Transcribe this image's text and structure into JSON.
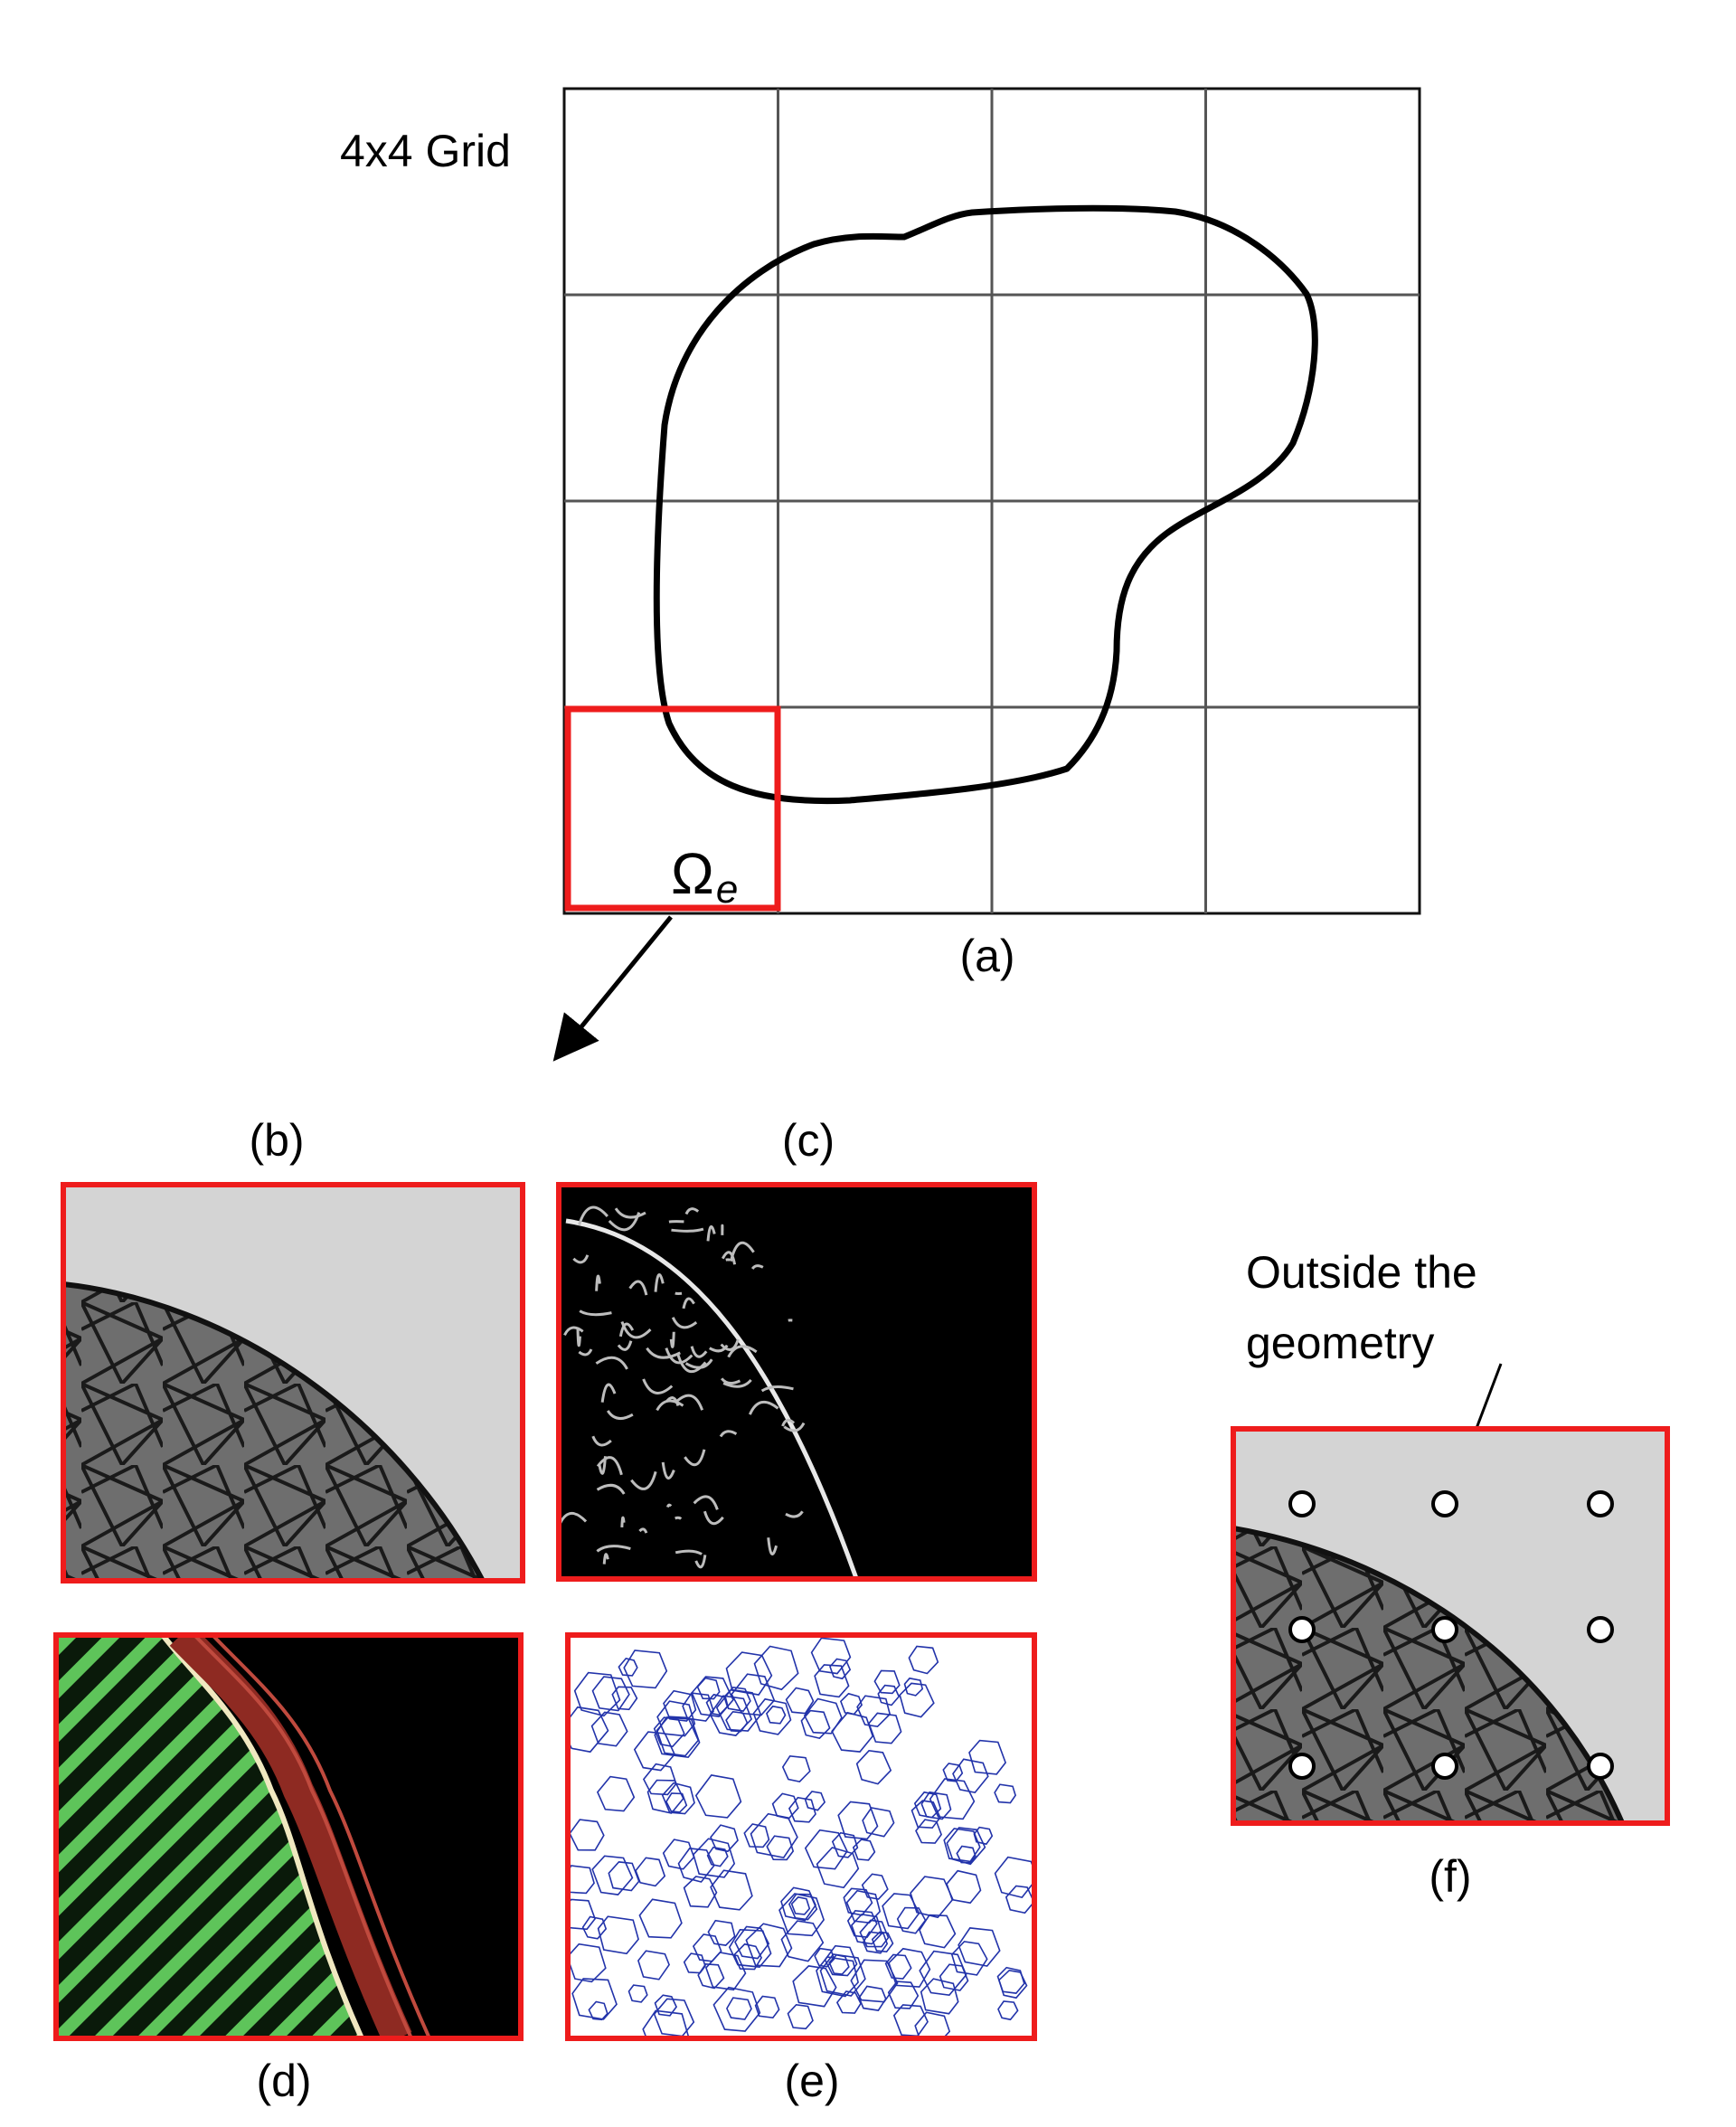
{
  "panel_a": {
    "grid_title": "4x4 Grid",
    "grid_size": 4,
    "element_symbol": "Ω",
    "element_subscript": "e",
    "caption": "(a)"
  },
  "panel_b": {
    "caption": "(b)"
  },
  "panel_c": {
    "caption": "(c)"
  },
  "panel_d": {
    "caption": "(d)"
  },
  "panel_e": {
    "caption": "(e)"
  },
  "panel_f": {
    "caption": "(f)",
    "annotation_line1": "Outside the",
    "annotation_line2": "geometry",
    "points": {
      "rows": 3,
      "cols": 3
    }
  },
  "colors": {
    "frame_red": "#ee1c1c",
    "light_gray": "#d4d4d4",
    "mesh_gray": "#6e6e6e",
    "green": "#4caf50",
    "dark_red": "#8e2a22",
    "wire_blue": "#2233aa"
  }
}
